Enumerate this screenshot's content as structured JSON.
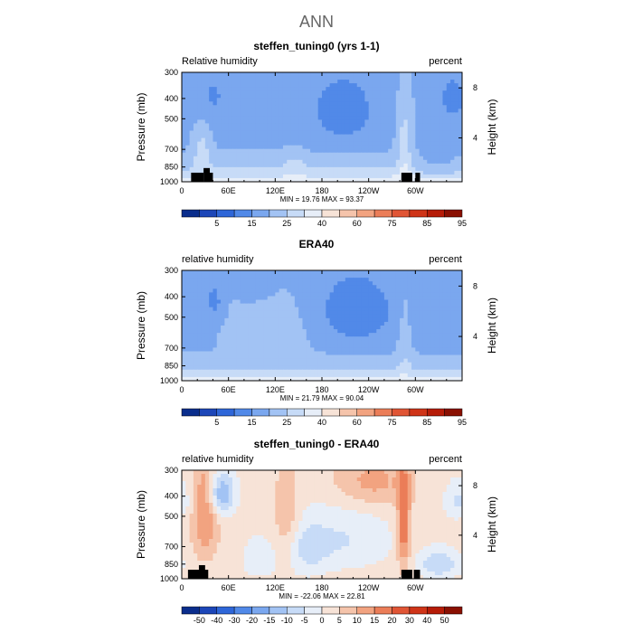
{
  "figure_title": "ANN",
  "colors": {
    "abs": [
      "#0a2d8c",
      "#1c46b8",
      "#2e66d8",
      "#5189e8",
      "#7aa7ef",
      "#a2c3f4",
      "#c7dbf7",
      "#e7eef8",
      "#f7e3d7",
      "#f5c4ab",
      "#f2a380",
      "#eb7d58",
      "#e05535",
      "#cf3418",
      "#b61c08",
      "#8a1002"
    ],
    "diff": [
      "#0a2d8c",
      "#1c46b8",
      "#2e66d8",
      "#5189e8",
      "#7aa7ef",
      "#a2c3f4",
      "#c7dbf7",
      "#e7eef8",
      "#f7e3d7",
      "#f5c4ab",
      "#f2a380",
      "#eb7d58",
      "#e05535",
      "#cf3418",
      "#b61c08",
      "#8a1002"
    ],
    "topography": "#000000"
  },
  "chart_data": [
    {
      "type": "heatmap",
      "title": "steffen_tuning0 (yrs 1-1)",
      "left_label": "Relative humidity",
      "right_label": "percent",
      "ylabel": "Pressure  (mb)",
      "ylabel_right": "Height  (km)",
      "x_ticks": [
        "0",
        "60E",
        "120E",
        "180",
        "120W",
        "60W"
      ],
      "x_tick_lons": [
        0,
        60,
        120,
        180,
        240,
        300
      ],
      "xlim": [
        0,
        360
      ],
      "y_ticks": [
        "300",
        "400",
        "500",
        "700",
        "850",
        "1000"
      ],
      "y_tick_values": [
        300,
        400,
        500,
        700,
        850,
        1000
      ],
      "ylim": [
        1000,
        300
      ],
      "height_ticks": [
        "8",
        "4"
      ],
      "height_tick_pressures": [
        356,
        617
      ],
      "stats": "MIN =   19.76   MAX =   93.37",
      "field": "abs",
      "colorbar_levels": [
        "5",
        "15",
        "25",
        "40",
        "60",
        "75",
        "85",
        "95"
      ],
      "topography": [
        [
          12,
          28,
          905
        ],
        [
          28,
          36,
          860
        ],
        [
          36,
          40,
          905
        ],
        [
          282,
          296,
          905
        ],
        [
          300,
          306,
          905
        ]
      ]
    },
    {
      "type": "heatmap",
      "title": "ERA40",
      "left_label": "relative humidity",
      "right_label": "percent",
      "ylabel": "Pressure  (mb)",
      "ylabel_right": "Height  (km)",
      "x_ticks": [
        "0",
        "60E",
        "120E",
        "180",
        "120W",
        "60W"
      ],
      "x_tick_lons": [
        0,
        60,
        120,
        180,
        240,
        300
      ],
      "xlim": [
        0,
        360
      ],
      "y_ticks": [
        "300",
        "400",
        "500",
        "700",
        "850",
        "1000"
      ],
      "y_tick_values": [
        300,
        400,
        500,
        700,
        850,
        1000
      ],
      "ylim": [
        1000,
        300
      ],
      "height_ticks": [
        "8",
        "4"
      ],
      "height_tick_pressures": [
        356,
        617
      ],
      "stats": "MIN =   21.79   MAX =   90.04",
      "field": "era",
      "colorbar_levels": [
        "5",
        "15",
        "25",
        "40",
        "60",
        "75",
        "85",
        "95"
      ],
      "topography": []
    },
    {
      "type": "heatmap",
      "title": "steffen_tuning0 - ERA40",
      "left_label": "relative humidity",
      "right_label": "percent",
      "ylabel": "Pressure  (mb)",
      "ylabel_right": "Height  (km)",
      "x_ticks": [
        "0",
        "60E",
        "120E",
        "180",
        "120W",
        "60W"
      ],
      "x_tick_lons": [
        0,
        60,
        120,
        180,
        240,
        300
      ],
      "xlim": [
        0,
        360
      ],
      "y_ticks": [
        "300",
        "400",
        "500",
        "700",
        "850",
        "1000"
      ],
      "y_tick_values": [
        300,
        400,
        500,
        700,
        850,
        1000
      ],
      "ylim": [
        1000,
        300
      ],
      "height_ticks": [
        "8",
        "4"
      ],
      "height_tick_pressures": [
        356,
        617
      ],
      "stats": "MIN =  -22.06   MAX =   22.81",
      "field": "diff",
      "colorbar_levels": [
        "-50",
        "-40",
        "-30",
        "-20",
        "-15",
        "-10",
        "-5",
        "0",
        "5",
        "10",
        "15",
        "20",
        "30",
        "40",
        "50"
      ],
      "topography": [
        [
          8,
          28,
          905
        ],
        [
          22,
          30,
          860
        ],
        [
          28,
          34,
          905
        ],
        [
          282,
          296,
          905
        ],
        [
          298,
          306,
          905
        ]
      ]
    }
  ]
}
